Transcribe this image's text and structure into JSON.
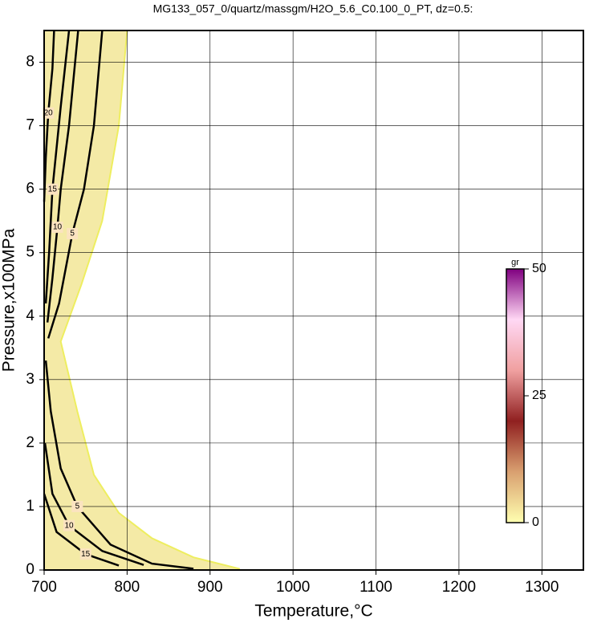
{
  "chart_data": {
    "type": "contour",
    "title": "MG133_057_0/quartz/massgm/H2O_5.6_C0.100_0_PT, dz=0.5:",
    "xlabel": "Temperature,°C",
    "ylabel": "Pressure,x100MPa",
    "xlim": [
      700,
      1350
    ],
    "xticks": [
      700,
      800,
      900,
      1000,
      1100,
      1200,
      1300
    ],
    "ylim": [
      0,
      8.5
    ],
    "yticks": [
      0,
      1,
      2,
      3,
      4,
      5,
      6,
      7,
      8
    ],
    "grid": true,
    "region": {
      "color": "#f4eaa6",
      "x": [
        700,
        800,
        790,
        770,
        745,
        720,
        740,
        760,
        790,
        830,
        880,
        935,
        935,
        700
      ],
      "y": [
        8.5,
        8.5,
        7,
        5.5,
        4.5,
        3.6,
        2.5,
        1.5,
        0.9,
        0.5,
        0.2,
        0.02,
        0,
        0
      ]
    },
    "contours": [
      {
        "level": 5,
        "x": [
          770,
          760,
          748,
          734,
          718,
          705
        ],
        "y": [
          8.5,
          7,
          6,
          5.3,
          4.2,
          3.65
        ]
      },
      {
        "level": 10,
        "x": [
          741,
          730,
          720,
          716,
          710,
          704
        ],
        "y": [
          8.5,
          7,
          6,
          5.4,
          4.6,
          3.9
        ]
      },
      {
        "level": 15,
        "x": [
          730,
          720,
          710,
          706,
          702
        ],
        "y": [
          8.5,
          7.3,
          6,
          5,
          4.2
        ]
      },
      {
        "level": 20,
        "x": [
          712,
          710,
          705,
          702,
          700
        ],
        "y": [
          8.5,
          7.9,
          7.2,
          6.5,
          5.8
        ]
      },
      {
        "level": 5,
        "x": [
          702,
          708,
          720,
          740,
          780,
          830,
          880
        ],
        "y": [
          3.3,
          2.5,
          1.6,
          1.0,
          0.4,
          0.1,
          0.02
        ]
      },
      {
        "level": 10,
        "x": [
          701,
          710,
          730,
          770,
          820
        ],
        "y": [
          2.0,
          1.2,
          0.7,
          0.3,
          0.08
        ]
      },
      {
        "level": 15,
        "x": [
          700,
          715,
          750,
          790
        ],
        "y": [
          1.2,
          0.6,
          0.25,
          0.07
        ]
      }
    ],
    "colorbar": {
      "label": "gr",
      "lim": [
        0,
        50
      ],
      "ticks": [
        0,
        25,
        50
      ],
      "colors": [
        "#ffffb0",
        "#d9a070",
        "#902020",
        "#f0a0a0",
        "#ffd8f4",
        "#800080"
      ]
    }
  }
}
